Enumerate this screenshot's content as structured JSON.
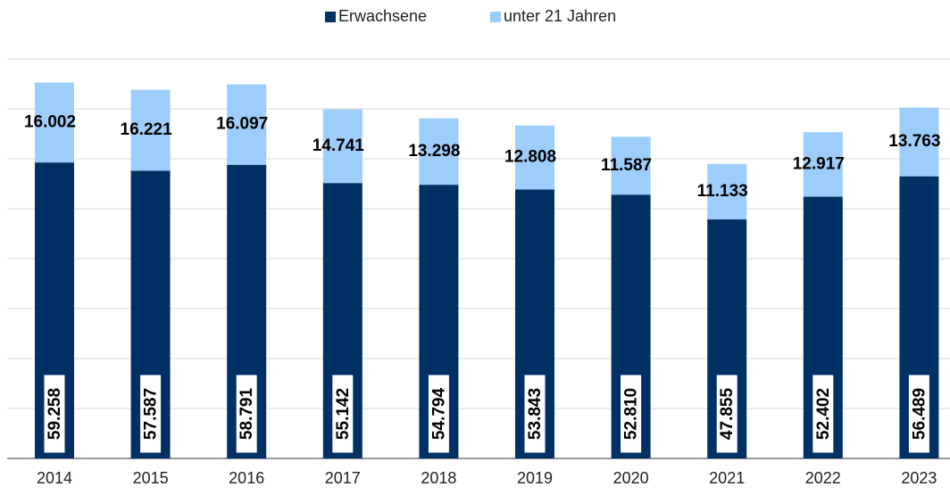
{
  "chart_data": {
    "type": "bar",
    "stacked": true,
    "categories": [
      "2014",
      "2015",
      "2016",
      "2017",
      "2018",
      "2019",
      "2020",
      "2021",
      "2022",
      "2023"
    ],
    "series": [
      {
        "name": "Erwachsene",
        "color": "#003064",
        "values": [
          59258,
          57587,
          58791,
          55142,
          54794,
          53843,
          52810,
          47855,
          52402,
          56489
        ],
        "value_labels": [
          "59.258",
          "57.587",
          "58.791",
          "55.142",
          "54.794",
          "53.843",
          "52.810",
          "47.855",
          "52.402",
          "56.489"
        ]
      },
      {
        "name": "unter 21 Jahren",
        "color": "#9dcdfb",
        "values": [
          16002,
          16221,
          16097,
          14741,
          13298,
          12808,
          11587,
          11133,
          12917,
          13763
        ],
        "value_labels": [
          "16.002",
          "16.221",
          "16.097",
          "14.741",
          "13.298",
          "12.808",
          "11.587",
          "11.133",
          "12.917",
          "13.763"
        ]
      }
    ],
    "ylim": [
      0,
      80000
    ],
    "yticks": [
      0,
      10000,
      20000,
      30000,
      40000,
      50000,
      60000,
      70000,
      80000
    ],
    "grid": true
  }
}
